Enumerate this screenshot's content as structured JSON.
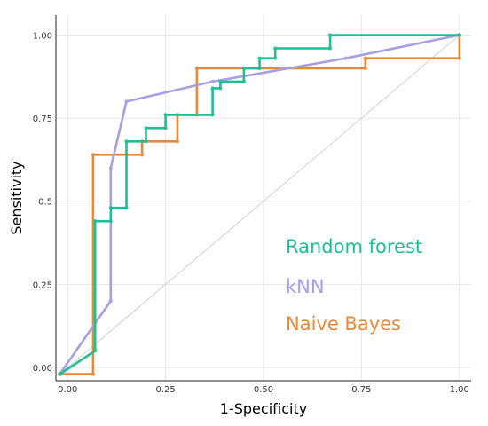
{
  "chart_data": {
    "type": "line",
    "title": "",
    "xlabel": "1-Specificity",
    "ylabel": "Sensitivity",
    "xlim": [
      -0.03,
      1.03
    ],
    "ylim": [
      -0.04,
      1.06
    ],
    "x_ticks": [
      0.0,
      0.25,
      0.5,
      0.75,
      1.0
    ],
    "x_tick_labels": [
      "0.00",
      "0.25",
      "0.50",
      "0.75",
      "1.00"
    ],
    "y_ticks": [
      0.0,
      0.25,
      0.5,
      0.75,
      1.0
    ],
    "y_tick_labels": [
      "0.00",
      "0.25",
      "0.5",
      "0.75",
      "1.00"
    ],
    "grid": true,
    "legend_position": "bottom-right",
    "reference_line": {
      "from": [
        -0.02,
        -0.02
      ],
      "to": [
        1.0,
        1.0
      ],
      "color": "#c8c8c8"
    },
    "series": [
      {
        "name": "Random forest",
        "color": "#1dbf95",
        "points": [
          [
            -0.02,
            -0.02
          ],
          [
            0.07,
            0.05
          ],
          [
            0.07,
            0.44
          ],
          [
            0.11,
            0.44
          ],
          [
            0.11,
            0.48
          ],
          [
            0.15,
            0.48
          ],
          [
            0.15,
            0.68
          ],
          [
            0.2,
            0.68
          ],
          [
            0.2,
            0.72
          ],
          [
            0.25,
            0.72
          ],
          [
            0.25,
            0.76
          ],
          [
            0.37,
            0.76
          ],
          [
            0.37,
            0.84
          ],
          [
            0.39,
            0.84
          ],
          [
            0.39,
            0.86
          ],
          [
            0.45,
            0.86
          ],
          [
            0.45,
            0.9
          ],
          [
            0.49,
            0.9
          ],
          [
            0.49,
            0.93
          ],
          [
            0.53,
            0.93
          ],
          [
            0.53,
            0.96
          ],
          [
            0.67,
            0.96
          ],
          [
            0.67,
            1.0
          ],
          [
            1.0,
            1.0
          ]
        ]
      },
      {
        "name": "kNN",
        "color": "#a99ee0",
        "points": [
          [
            -0.02,
            -0.02
          ],
          [
            0.11,
            0.2
          ],
          [
            0.11,
            0.6
          ],
          [
            0.15,
            0.8
          ],
          [
            0.37,
            0.86
          ],
          [
            0.71,
            0.93
          ],
          [
            1.0,
            1.0
          ]
        ]
      },
      {
        "name": "Naive Bayes",
        "color": "#e8893a",
        "points": [
          [
            -0.02,
            -0.02
          ],
          [
            0.065,
            -0.02
          ],
          [
            0.065,
            0.64
          ],
          [
            0.19,
            0.64
          ],
          [
            0.19,
            0.68
          ],
          [
            0.28,
            0.68
          ],
          [
            0.28,
            0.76
          ],
          [
            0.33,
            0.76
          ],
          [
            0.33,
            0.9
          ],
          [
            0.76,
            0.9
          ],
          [
            0.76,
            0.93
          ],
          [
            1.0,
            0.93
          ],
          [
            1.0,
            1.0
          ]
        ]
      }
    ],
    "legend": [
      {
        "label": "Random forest",
        "color": "#1dbf95"
      },
      {
        "label": "kNN",
        "color": "#a99ee0"
      },
      {
        "label": "Naive Bayes",
        "color": "#e8893a"
      }
    ]
  }
}
